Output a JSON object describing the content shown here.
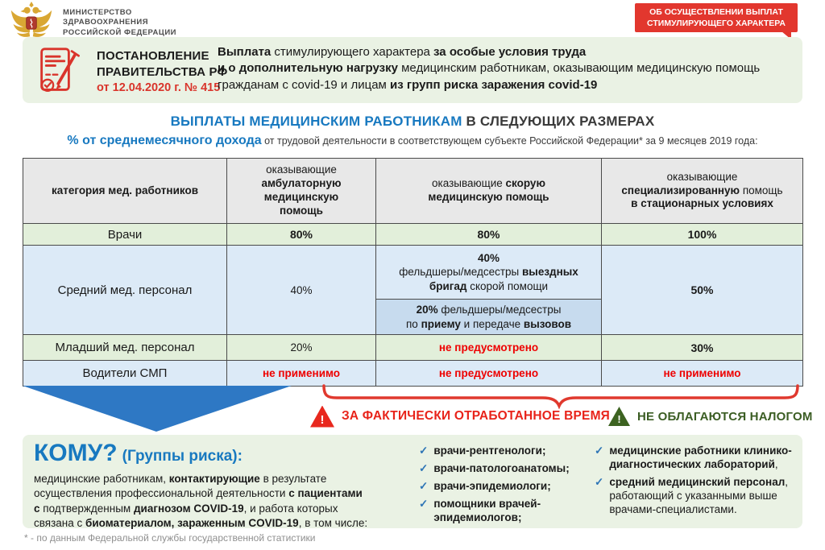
{
  "palette": {
    "accent_blue": "#1879c0",
    "accent_red": "#e2372e",
    "date_red": "#d9342b",
    "value_red": "#ee0000",
    "dark_green": "#3b5d23",
    "arrow_blue": "#2e78c4",
    "row_green": "#e2efda",
    "row_blue": "#dceaf7",
    "row_blue_dark": "#c7dbee",
    "box_green": "#eaf2e4",
    "header_gray": "#e8e8e8"
  },
  "header": {
    "ministry_lines": [
      "МИНИСТЕРСТВО",
      "ЗДРАВООХРАНЕНИЯ",
      "РОССИЙСКОЙ ФЕДЕРАЦИИ"
    ],
    "badge_lines": [
      "ОБ ОСУЩЕСТВЛЕНИИ ВЫПЛАТ",
      "СТИМУЛИРУЮЩЕГО ХАРАКТЕРА"
    ],
    "decree": {
      "title1": "ПОСТАНОВЛЕНИЕ",
      "title2": "ПРАВИТЕЛЬСТВА РФ",
      "date": "от 12.04.2020 г. № 415"
    },
    "summary_runs": [
      {
        "t": "Выплата",
        "b": true
      },
      {
        "t": " стимулирующего характера "
      },
      {
        "t": "за особые условия труда",
        "b": true
      },
      {
        "br": true
      },
      {
        "t": "и о дополнительную нагрузку",
        "b": true
      },
      {
        "t": " медицинским работникам, оказывающим медицинскую помощь гражданам с covid-19 и лицам "
      },
      {
        "t": "из групп риска заражения covid-19",
        "b": true
      }
    ]
  },
  "title_runs": [
    {
      "t": "ВЫПЛАТЫ МЕДИЦИНСКИМ РАБОТНИКАМ ",
      "b": true,
      "c": "#1879c0"
    },
    {
      "t": "В СЛЕДУЮЩИХ РАЗМЕРАХ",
      "b": true,
      "c": "#3a3a3a"
    }
  ],
  "subtitle_runs": [
    {
      "t": "% от среднемесячного дохода",
      "b": true,
      "c": "#1879c0",
      "fs": 16
    },
    {
      "t": " от трудовой деятельности в соответствующем субъекте Российской Федерации* за 9 месяцев 2019 года:"
    }
  ],
  "table": {
    "header": {
      "col1": [
        {
          "t": "категория мед. работников",
          "b": true
        }
      ],
      "col2": [
        {
          "t": "оказывающие"
        },
        {
          "br": true
        },
        {
          "t": "амбулаторную",
          "b": true
        },
        {
          "br": true
        },
        {
          "t": "медицинскую",
          "b": true
        },
        {
          "br": true
        },
        {
          "t": "помощь",
          "b": true
        }
      ],
      "col3": [
        {
          "t": "оказывающие "
        },
        {
          "t": "скорую",
          "b": true
        },
        {
          "br": true
        },
        {
          "t": "медицинскую помощь",
          "b": true
        }
      ],
      "col4": [
        {
          "t": "оказывающие"
        },
        {
          "br": true
        },
        {
          "t": "специализированную",
          "b": true
        },
        {
          "t": " помощь"
        },
        {
          "br": true
        },
        {
          "t": "в стационарных условиях",
          "b": true
        }
      ]
    },
    "rows": {
      "doctors": {
        "label": "Врачи",
        "v1": "80%",
        "v2": "80%",
        "v3": "100%"
      },
      "mid": {
        "label": "Средний мед. персонал",
        "v1": "40%",
        "v3": "50%",
        "amb_top": [
          {
            "t": "40%",
            "b": true
          },
          {
            "br": true
          },
          {
            "t": "фельдшеры/медсестры "
          },
          {
            "t": "выездных бригад",
            "b": true
          },
          {
            "t": " скорой помощи"
          }
        ],
        "amb_bottom": [
          {
            "t": "20%",
            "b": true
          },
          {
            "t": " фельдшеры/медсестры"
          },
          {
            "br": true
          },
          {
            "t": "по "
          },
          {
            "t": "приему",
            "b": true
          },
          {
            "t": " и передаче "
          },
          {
            "t": "вызовов",
            "b": true
          }
        ]
      },
      "junior": {
        "label": "Младший мед. персонал",
        "v1": "20%",
        "v2": "не предусмотрено",
        "v3": "30%"
      },
      "drivers": {
        "label": "Водители СМП",
        "v1": "не применимо",
        "v2": "не предусмотрено",
        "v3": "не применимо"
      }
    }
  },
  "notes": {
    "warning_mark": "!",
    "time_note": "ЗА ФАКТИЧЕСКИ ОТРАБОТАННОЕ ВРЕМЯ",
    "tax_note": "НЕ ОБЛАГАЮТСЯ НАЛОГОМ"
  },
  "whom": {
    "title": "КОМУ?",
    "subtitle": "(Группы риска):",
    "paragraph_runs": [
      {
        "t": "медицинские работникам, "
      },
      {
        "t": "контактирующие",
        "b": true
      },
      {
        "t": " в результате"
      },
      {
        "br": true
      },
      {
        "t": "осуществления профессиональной деятельности "
      },
      {
        "t": "с пациентами",
        "b": true
      },
      {
        "br": true
      },
      {
        "t": "с",
        "b": true
      },
      {
        "t": " подтвержденным "
      },
      {
        "t": "диагнозом COVID-19",
        "b": true
      },
      {
        "t": ", и работа которых"
      },
      {
        "br": true
      },
      {
        "t": "связана с "
      },
      {
        "t": "биоматериалом, зараженным COVID-19",
        "b": true
      },
      {
        "t": ", в том числе:"
      }
    ],
    "check": "✓",
    "list_left": [
      "врачи-рентгенологи;",
      "врачи-патологоанатомы;",
      "врачи-эпидемиологи;",
      "помощники врачей-эпидемиологов;"
    ],
    "list_right": [
      [
        {
          "t": "медицинские работники клинико-диагностических лабораторий",
          "b": true
        },
        {
          "t": ","
        }
      ],
      [
        {
          "t": "средний медицинский персонал",
          "b": true
        },
        {
          "t": ", работающий с указанными выше врачами-специалистами."
        }
      ]
    ]
  },
  "footnote": "* - по данным Федеральной службы государственной статистики"
}
